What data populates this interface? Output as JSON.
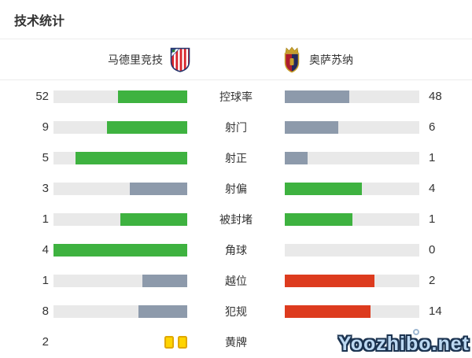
{
  "title": "技术统计",
  "teams": {
    "home": {
      "name": "马德里竞技"
    },
    "away": {
      "name": "奥萨苏纳"
    }
  },
  "stats": [
    {
      "label": "控球率",
      "home": {
        "value": 52,
        "color": "green"
      },
      "away": {
        "value": 48,
        "color": "gray"
      }
    },
    {
      "label": "射门",
      "home": {
        "value": 9,
        "color": "green"
      },
      "away": {
        "value": 6,
        "color": "gray"
      }
    },
    {
      "label": "射正",
      "home": {
        "value": 5,
        "color": "green"
      },
      "away": {
        "value": 1,
        "color": "gray"
      }
    },
    {
      "label": "射偏",
      "home": {
        "value": 3,
        "color": "gray"
      },
      "away": {
        "value": 4,
        "color": "green"
      }
    },
    {
      "label": "被封堵",
      "home": {
        "value": 1,
        "color": "green"
      },
      "away": {
        "value": 1,
        "color": "green"
      }
    },
    {
      "label": "角球",
      "home": {
        "value": 4,
        "color": "green"
      },
      "away": {
        "value": 0,
        "color": "gray"
      }
    },
    {
      "label": "越位",
      "home": {
        "value": 1,
        "color": "gray"
      },
      "away": {
        "value": 2,
        "color": "red"
      }
    },
    {
      "label": "犯规",
      "home": {
        "value": 8,
        "color": "gray"
      },
      "away": {
        "value": 14,
        "color": "red"
      }
    },
    {
      "label": "黄牌",
      "type": "cards",
      "home": {
        "value": 2,
        "color": "yellow"
      },
      "away": {
        "value": null,
        "color": "none"
      }
    }
  ],
  "colors": {
    "green": "#3eb240",
    "gray": "#8d9aab",
    "red": "#dd3b1e",
    "track": "#e9e9e9",
    "card_fill": "#ffd400",
    "card_border": "#e0a800"
  },
  "watermark": "Yoozhibo.net",
  "chart_data": {
    "type": "bar",
    "orientation": "horizontal-paired",
    "title": "技术统计",
    "categories": [
      "控球率",
      "射门",
      "射正",
      "射偏",
      "被封堵",
      "角球",
      "越位",
      "犯规",
      "黄牌"
    ],
    "series": [
      {
        "name": "马德里竞技",
        "values": [
          52,
          9,
          5,
          3,
          1,
          4,
          1,
          8,
          2
        ],
        "bar_colors": [
          "green",
          "green",
          "green",
          "gray",
          "green",
          "green",
          "gray",
          "gray",
          "yellow-cards"
        ]
      },
      {
        "name": "奥萨苏纳",
        "values": [
          48,
          6,
          1,
          4,
          1,
          0,
          2,
          14,
          null
        ],
        "bar_colors": [
          "gray",
          "gray",
          "gray",
          "green",
          "green",
          "none",
          "red",
          "red",
          "none"
        ]
      }
    ],
    "value_scale": "each pair fills proportionally to value/(home+away), anchored toward center labels"
  }
}
